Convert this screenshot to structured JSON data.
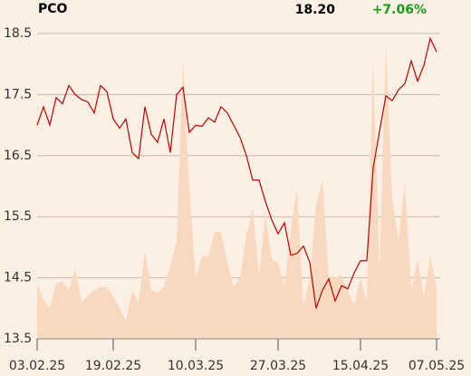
{
  "chart_data": {
    "type": "line",
    "title": "PCO",
    "price": "18.20",
    "change": "+7.06%",
    "change_color": "#1a9a1a",
    "xlim": [
      0,
      63
    ],
    "xticks": [
      {
        "value": 0,
        "label": "03.02.25"
      },
      {
        "value": 12,
        "label": "19.02.25"
      },
      {
        "value": 25,
        "label": "10.03.25"
      },
      {
        "value": 38,
        "label": "27.03.25"
      },
      {
        "value": 51,
        "label": "15.04.25"
      },
      {
        "value": 63,
        "label": "07.05.25"
      }
    ],
    "ylim": [
      13.5,
      18.5
    ],
    "yticks": [
      13.5,
      14.5,
      15.5,
      16.5,
      17.5,
      18.5
    ],
    "grid": true,
    "series": [
      {
        "type": "area",
        "color": "#f8d9c0",
        "values": [
          14.4,
          14.15,
          14.0,
          14.4,
          14.45,
          14.3,
          14.65,
          14.1,
          14.2,
          14.3,
          14.35,
          14.35,
          14.2,
          14.0,
          13.8,
          14.3,
          14.1,
          14.95,
          14.3,
          14.25,
          14.35,
          14.7,
          15.1,
          18.05,
          16.0,
          14.5,
          14.85,
          14.85,
          15.25,
          15.25,
          14.75,
          14.35,
          14.5,
          15.2,
          15.65,
          14.55,
          15.55,
          14.8,
          14.75,
          14.35,
          15.3,
          15.95,
          14.05,
          14.5,
          15.7,
          16.1,
          14.5,
          14.5,
          14.55,
          14.3,
          14.05,
          14.5,
          14.1,
          18.1,
          14.6,
          18.3,
          15.8,
          15.1,
          16.05,
          14.3,
          14.8,
          14.2,
          14.85,
          14.35
        ]
      },
      {
        "type": "line",
        "color": "#c00000",
        "values": [
          17.0,
          17.3,
          17.0,
          17.45,
          17.35,
          17.65,
          17.5,
          17.42,
          17.38,
          17.2,
          17.65,
          17.55,
          17.1,
          16.95,
          17.1,
          16.55,
          16.45,
          17.3,
          16.85,
          16.72,
          17.1,
          16.55,
          17.5,
          17.62,
          16.88,
          17.0,
          16.98,
          17.12,
          17.05,
          17.3,
          17.2,
          17.0,
          16.8,
          16.5,
          16.1,
          16.1,
          15.75,
          15.45,
          15.22,
          15.4,
          14.87,
          14.9,
          15.02,
          14.75,
          14.0,
          14.3,
          14.48,
          14.12,
          14.37,
          14.32,
          14.58,
          14.78,
          14.78,
          16.3,
          16.9,
          17.48,
          17.4,
          17.58,
          17.68,
          18.05,
          17.72,
          17.98,
          18.42,
          18.2
        ]
      }
    ]
  }
}
